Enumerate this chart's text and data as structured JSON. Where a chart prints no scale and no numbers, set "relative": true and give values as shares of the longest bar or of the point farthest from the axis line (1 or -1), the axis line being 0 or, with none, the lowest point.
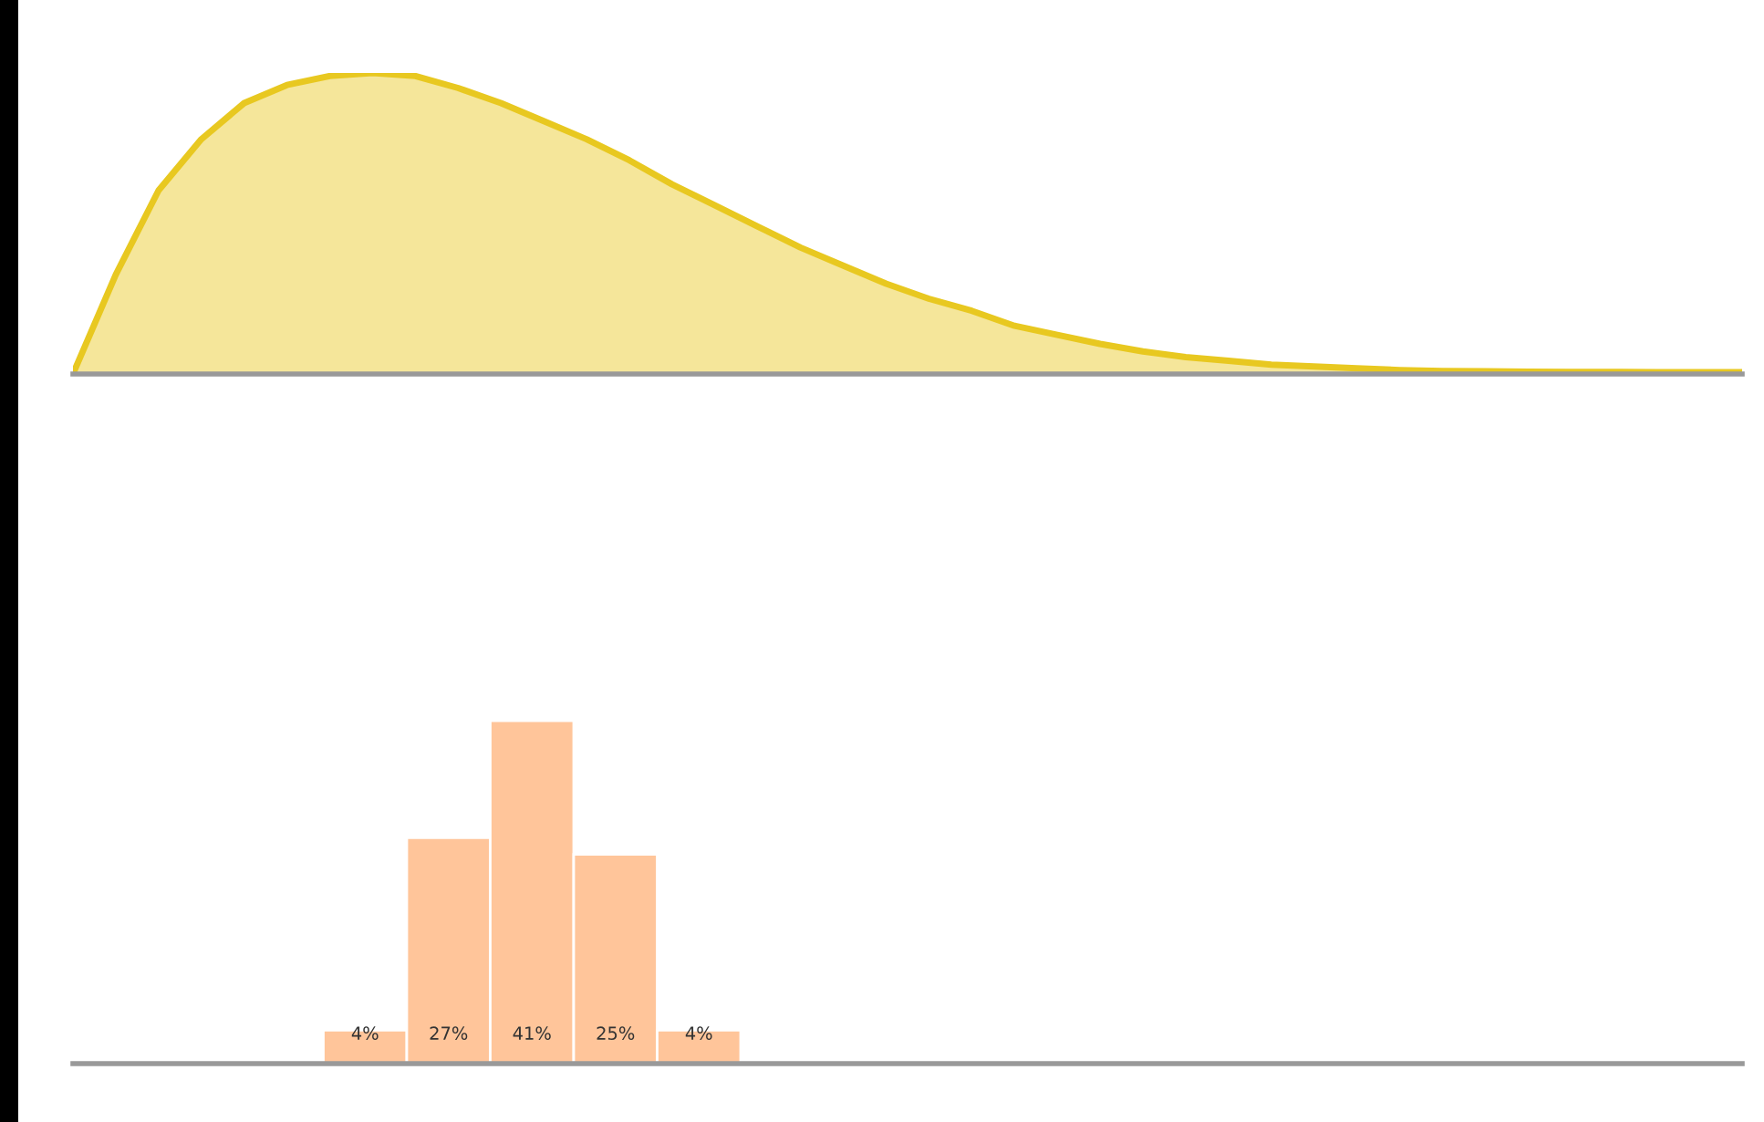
{
  "chart_data": [
    {
      "type": "area",
      "relative": true,
      "categories": [
        null,
        null,
        null,
        null,
        null,
        null,
        null,
        null,
        null,
        null,
        null,
        null,
        null,
        null,
        null,
        null,
        null,
        null,
        null,
        null,
        null,
        null,
        null,
        null,
        null,
        null,
        null,
        null,
        null,
        null,
        null,
        null,
        null,
        null,
        null,
        null,
        null,
        null,
        null,
        null
      ],
      "series": [
        {
          "color": "#e8c820",
          "values": [
            0,
            0.33,
            0.61,
            0.78,
            0.9,
            0.96,
            0.99,
            1.0,
            0.99,
            0.95,
            0.9,
            0.84,
            0.78,
            0.71,
            0.63,
            0.56,
            0.49,
            0.42,
            0.36,
            0.3,
            0.25,
            0.21,
            0.16,
            0.13,
            0.1,
            0.075,
            0.056,
            0.044,
            0.031,
            0.025,
            0.019,
            0.013,
            0.01,
            0.009,
            0.008,
            0.007,
            0.007,
            0.006,
            0.006,
            0.006
          ]
        }
      ],
      "legend": false,
      "marker": "none"
    },
    {
      "type": "bar",
      "categories": [
        null,
        null,
        null,
        null,
        null
      ],
      "series": [
        {
          "color": "#ffc59a",
          "values": [
            4,
            27,
            41,
            25,
            4
          ],
          "value_labels": [
            "4%",
            "27%",
            "41%",
            "25%",
            "4%"
          ]
        }
      ],
      "legend": false
    }
  ]
}
